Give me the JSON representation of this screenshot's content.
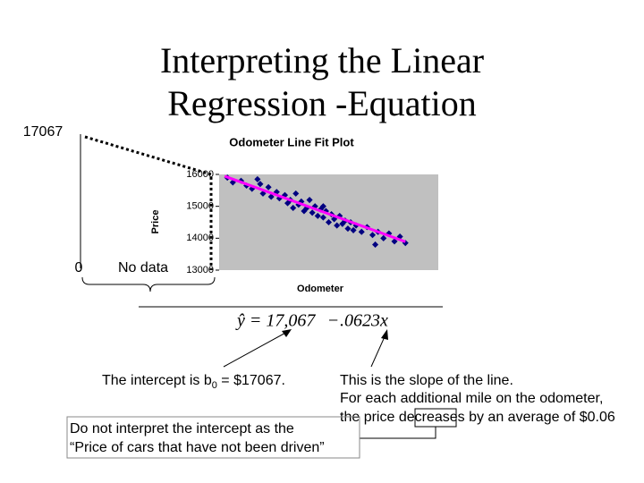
{
  "title_lines": [
    "Interpreting the Linear",
    "Regression -Equation"
  ],
  "intercept_marker": "17067",
  "zero_marker": "0",
  "no_data": "No data",
  "equation": {
    "lhs": "ŷ = 17,067",
    "op": "−",
    "rhs": ".0623x"
  },
  "intercept_note": [
    "The intercept is b",
    "0",
    " = $17067."
  ],
  "slope_note": [
    "This is the slope of the line.",
    "For each additional mile on the odometer,",
    "the price decreases by an average of $0.06"
  ],
  "warning": [
    "Do not interpret the intercept as the",
    "“Price of cars that have not been driven”"
  ],
  "chart_data": {
    "type": "scatter",
    "title": "Odometer Line Fit  Plot",
    "x_label": "Odometer",
    "y_label": "Price",
    "xlim": [
      17000,
      57000
    ],
    "ylim": [
      13000,
      16000
    ],
    "yticks": [
      13000,
      14000,
      15000,
      16000
    ],
    "series": [
      {
        "name": "Price",
        "color": "#000080",
        "x": [
          18500,
          19500,
          21000,
          22000,
          23000,
          24500,
          25000,
          26000,
          26500,
          27500,
          28000,
          29000,
          29500,
          30000,
          30500,
          31000,
          31500,
          32000,
          32500,
          33000,
          33500,
          34000,
          34500,
          35000,
          35500,
          36000,
          36500,
          37000,
          37500,
          38000,
          38500,
          39000,
          39500,
          40000,
          40500,
          41000,
          41500,
          42000,
          43000,
          44000,
          45000,
          46000,
          47000,
          48000,
          49000,
          50000,
          51000,
          24000,
          36000,
          45500
        ],
        "values": [
          15900,
          15750,
          15800,
          15650,
          15550,
          15700,
          15400,
          15600,
          15300,
          15450,
          15250,
          15350,
          15100,
          15200,
          14950,
          15400,
          15050,
          15150,
          14850,
          14950,
          15200,
          14800,
          15000,
          14700,
          14900,
          14650,
          14850,
          14500,
          14750,
          14600,
          14400,
          14700,
          14450,
          14550,
          14300,
          14500,
          14250,
          14400,
          14200,
          14350,
          14100,
          14200,
          14000,
          14150,
          13900,
          14050,
          13850,
          15850,
          15000,
          13800
        ]
      }
    ],
    "fit": {
      "intercept": 17067,
      "slope": -0.0623,
      "x": [
        18000,
        51000
      ],
      "color": "#ff00ff"
    },
    "plot_background": "#c0c0c0"
  }
}
